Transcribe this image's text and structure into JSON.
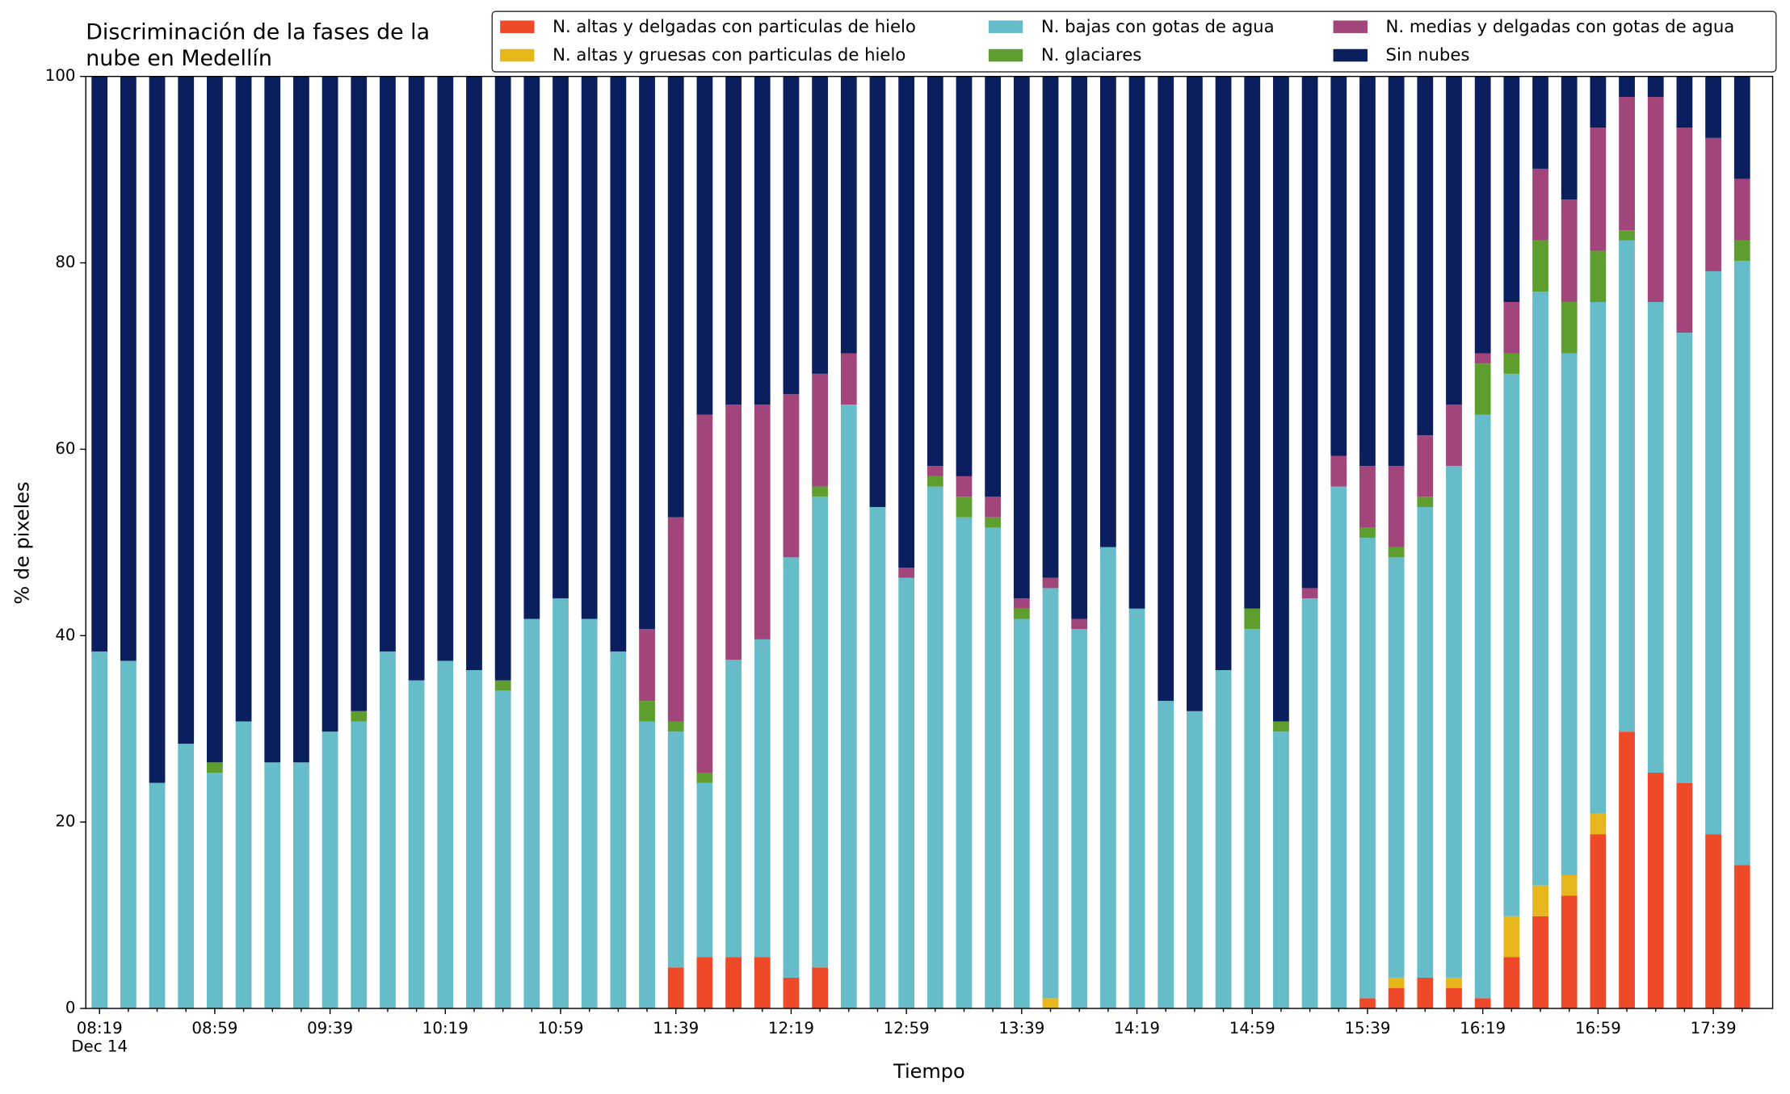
{
  "chart_data": {
    "type": "stacked_bar",
    "title": [
      "Discriminación de la fases de la",
      "nube en Medellín"
    ],
    "xlabel": "Tiempo",
    "ylabel": "% de pixeles",
    "date_label": "Dec 14",
    "categories": [
      "08:19",
      null,
      null,
      null,
      "08:59",
      null,
      null,
      null,
      "09:39",
      null,
      null,
      null,
      "10:19",
      null,
      null,
      null,
      "10:59",
      null,
      null,
      null,
      "11:39",
      null,
      null,
      null,
      "12:19",
      null,
      null,
      null,
      "12:59",
      null,
      null,
      null,
      "13:39",
      null,
      null,
      null,
      "14:19",
      null,
      null,
      null,
      "14:59",
      null,
      null,
      null,
      "15:39",
      null,
      null,
      null,
      "16:19",
      null,
      null,
      null,
      "16:59",
      null,
      null,
      null,
      "17:39",
      null
    ],
    "ylim": [
      0,
      100
    ],
    "yticks": [
      0,
      20,
      40,
      60,
      80,
      100
    ],
    "series": [
      {
        "name": "N. altas y delgadas con particulas de hielo",
        "color": "#ee4a2a",
        "values": [
          0,
          0,
          0,
          0,
          0,
          0,
          0,
          0,
          0,
          0,
          0,
          0,
          0,
          0,
          0,
          0,
          0,
          0,
          0,
          0,
          4.4,
          5.5,
          5.5,
          5.5,
          3.3,
          4.4,
          0,
          0,
          0,
          0,
          0,
          0,
          0,
          0,
          0,
          0,
          0,
          0,
          0,
          0,
          0,
          0,
          0,
          0,
          1.1,
          2.2,
          3.3,
          2.2,
          1.1,
          5.5,
          9.9,
          12.1,
          18.7,
          29.7,
          25.3,
          24.2,
          18.7,
          15.4
        ]
      },
      {
        "name": "N. altas y gruesas con particulas de hielo",
        "color": "#e6b61c",
        "values": [
          0,
          0,
          0,
          0,
          0,
          0,
          0,
          0,
          0,
          0,
          0,
          0,
          0,
          0,
          0,
          0,
          0,
          0,
          0,
          0,
          0,
          0,
          0,
          0,
          0,
          0,
          0,
          0,
          0,
          0,
          0,
          0,
          0,
          1.1,
          0,
          0,
          0,
          0,
          0,
          0,
          0,
          0,
          0,
          0,
          0,
          1.1,
          0,
          1.1,
          0,
          4.4,
          3.3,
          2.2,
          2.2,
          0,
          0,
          0,
          0,
          0
        ]
      },
      {
        "name": "N. bajas con gotas de agua",
        "color": "#66bcc9",
        "values": [
          38.3,
          37.3,
          24.2,
          28.4,
          25.3,
          30.8,
          26.4,
          26.4,
          29.7,
          30.8,
          38.3,
          35.2,
          37.3,
          36.3,
          34.1,
          41.8,
          44.0,
          41.8,
          38.3,
          30.8,
          25.3,
          18.7,
          31.9,
          34.1,
          45.1,
          50.5,
          64.8,
          53.8,
          46.2,
          56.0,
          52.7,
          51.6,
          41.8,
          44.0,
          40.7,
          49.5,
          42.9,
          33.0,
          31.9,
          36.3,
          40.7,
          29.7,
          44.0,
          56.0,
          49.4,
          45.1,
          50.5,
          54.9,
          62.6,
          58.2,
          63.7,
          56.0,
          54.9,
          52.7,
          50.5,
          48.3,
          60.4,
          64.8
        ]
      },
      {
        "name": "N. glaciares",
        "color": "#5e9e2e",
        "values": [
          0,
          0,
          0,
          0,
          1.1,
          0,
          0,
          0,
          0,
          1.1,
          0,
          0,
          0,
          0,
          1.1,
          0,
          0,
          0,
          0,
          2.2,
          1.1,
          1.1,
          0,
          0,
          0,
          1.1,
          0,
          0,
          0,
          1.1,
          2.2,
          1.1,
          1.1,
          0,
          0,
          0,
          0,
          0,
          0,
          0,
          2.2,
          1.1,
          0,
          0,
          1.1,
          1.1,
          1.1,
          0,
          5.5,
          2.2,
          5.5,
          5.5,
          5.5,
          1.1,
          0,
          0,
          0,
          2.2
        ]
      },
      {
        "name": "N. medias y delgadas con gotas de agua",
        "color": "#a1457a",
        "values": [
          0,
          0,
          0,
          0,
          0,
          0,
          0,
          0,
          0,
          0,
          0,
          0,
          0,
          0,
          0,
          0,
          0,
          0,
          0,
          7.7,
          21.9,
          38.4,
          27.4,
          25.2,
          17.5,
          12.1,
          5.5,
          0,
          1.1,
          1.1,
          2.2,
          2.2,
          1.1,
          1.1,
          1.1,
          0,
          0,
          0,
          0,
          0,
          0,
          0,
          1.1,
          3.3,
          6.6,
          8.7,
          6.6,
          6.6,
          1.1,
          5.5,
          7.7,
          11.0,
          13.2,
          14.3,
          22.0,
          22.0,
          14.3,
          6.6
        ]
      },
      {
        "name": "Sin nubes",
        "color": "#0b1f5e",
        "values": [
          61.7,
          62.7,
          75.8,
          71.6,
          73.6,
          69.2,
          73.6,
          73.6,
          70.3,
          68.1,
          61.7,
          64.8,
          62.7,
          63.7,
          64.8,
          58.2,
          56.0,
          58.2,
          61.7,
          59.3,
          47.3,
          36.3,
          35.2,
          35.2,
          34.1,
          31.9,
          29.7,
          46.2,
          52.7,
          41.8,
          42.9,
          45.1,
          56.0,
          53.8,
          58.2,
          50.5,
          57.1,
          67.0,
          68.1,
          63.7,
          57.1,
          69.2,
          54.9,
          40.7,
          41.8,
          41.8,
          38.5,
          35.2,
          29.7,
          24.2,
          9.9,
          13.2,
          5.5,
          2.2,
          2.2,
          5.5,
          6.6,
          11.0
        ]
      }
    ]
  }
}
